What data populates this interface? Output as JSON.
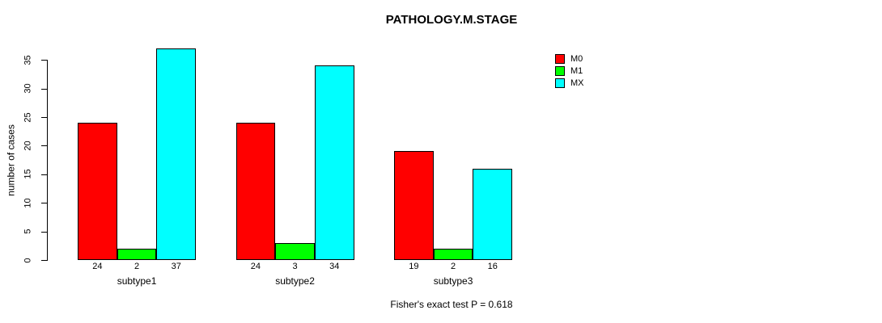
{
  "chart_data": {
    "type": "bar",
    "title": "PATHOLOGY.M.STAGE",
    "categories": [
      "subtype1",
      "subtype2",
      "subtype3"
    ],
    "series": [
      {
        "name": "M0",
        "color": "#FF0000",
        "values": [
          24,
          24,
          19
        ]
      },
      {
        "name": "M1",
        "color": "#00FF00",
        "values": [
          2,
          3,
          2
        ]
      },
      {
        "name": "MX",
        "color": "#00FFFF",
        "values": [
          37,
          34,
          16
        ]
      }
    ],
    "xlabel": "",
    "ylabel": "number of cases",
    "ylim": [
      0,
      37
    ],
    "yticks": [
      0,
      5,
      10,
      15,
      20,
      25,
      30,
      35
    ],
    "bar_value_labels_shown": true,
    "grid": false,
    "legend_position": "top-right",
    "annotation": "Fisher's exact test P = 0.618",
    "axis_color": "#000000",
    "background_color": "#FFFFFF"
  }
}
